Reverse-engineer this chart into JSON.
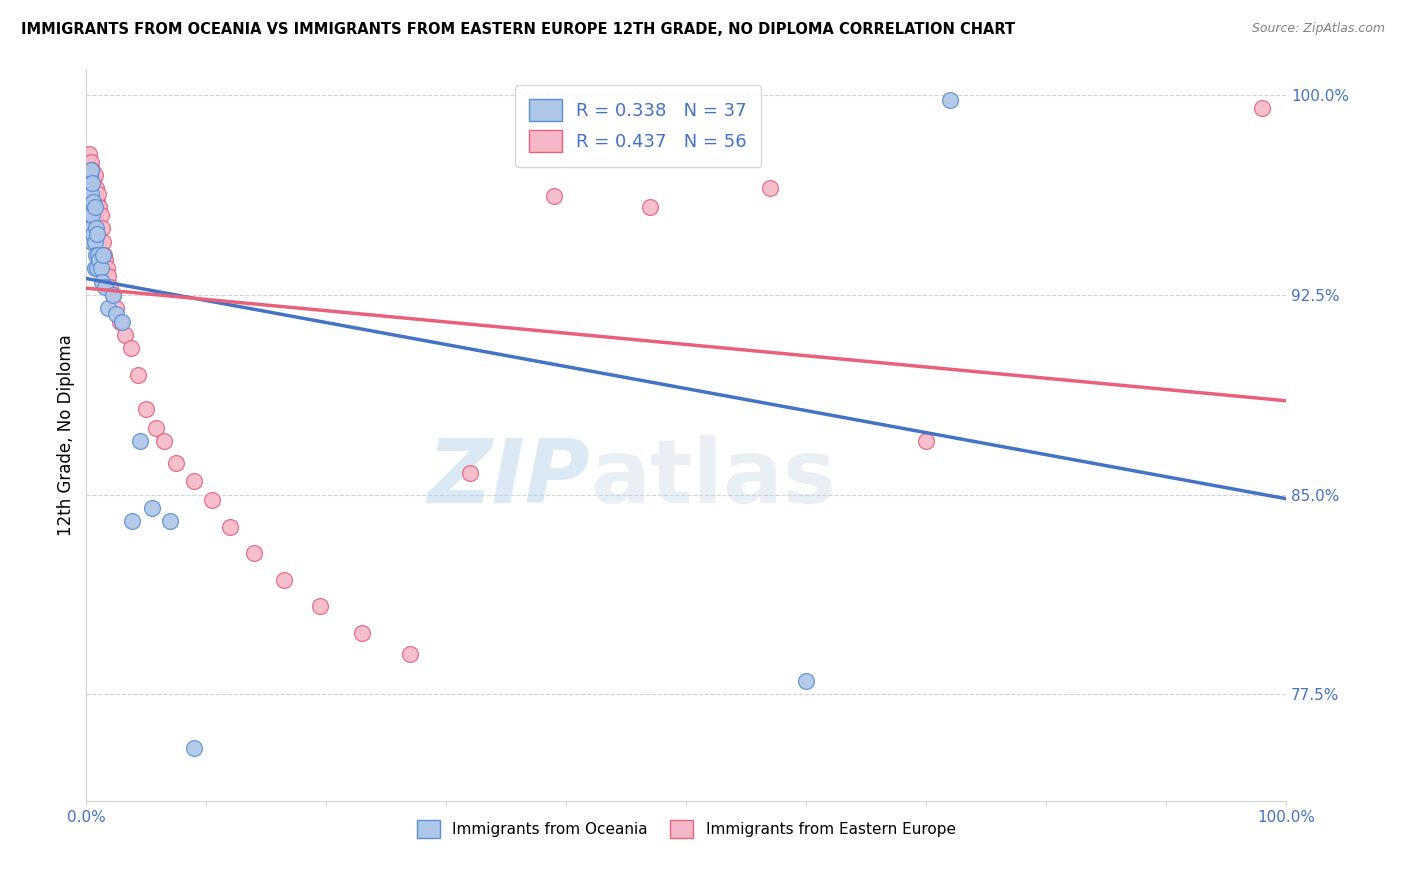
{
  "title": "IMMIGRANTS FROM OCEANIA VS IMMIGRANTS FROM EASTERN EUROPE 12TH GRADE, NO DIPLOMA CORRELATION CHART",
  "source": "Source: ZipAtlas.com",
  "ylabel": "12th Grade, No Diploma",
  "xlim": [
    0,
    1.0
  ],
  "ylim": [
    0.735,
    1.01
  ],
  "yticks": [
    0.775,
    0.85,
    0.925,
    1.0
  ],
  "ytick_labels": [
    "77.5%",
    "85.0%",
    "92.5%",
    "100.0%"
  ],
  "xtick_labels": [
    "0.0%",
    "100.0%"
  ],
  "blue_R": 0.338,
  "blue_N": 37,
  "pink_R": 0.437,
  "pink_N": 56,
  "blue_color": "#aec6e8",
  "pink_color": "#f5b8c8",
  "blue_edge_color": "#5b8fd4",
  "pink_edge_color": "#e8607a",
  "blue_line_color": "#4472c4",
  "pink_line_color": "#e8607a",
  "legend_label_blue": "Immigrants from Oceania",
  "legend_label_pink": "Immigrants from Eastern Europe",
  "watermark_zip": "ZIP",
  "watermark_atlas": "atlas",
  "blue_scatter_x": [
    0.001,
    0.002,
    0.002,
    0.003,
    0.003,
    0.004,
    0.004,
    0.004,
    0.005,
    0.005,
    0.005,
    0.006,
    0.006,
    0.007,
    0.007,
    0.007,
    0.008,
    0.008,
    0.009,
    0.009,
    0.01,
    0.011,
    0.012,
    0.013,
    0.014,
    0.016,
    0.018,
    0.022,
    0.025,
    0.03,
    0.038,
    0.045,
    0.055,
    0.07,
    0.09,
    0.6,
    0.72
  ],
  "blue_scatter_y": [
    0.96,
    0.965,
    0.958,
    0.97,
    0.955,
    0.972,
    0.963,
    0.95,
    0.967,
    0.955,
    0.945,
    0.96,
    0.948,
    0.958,
    0.945,
    0.935,
    0.95,
    0.94,
    0.948,
    0.935,
    0.94,
    0.938,
    0.935,
    0.93,
    0.94,
    0.928,
    0.92,
    0.925,
    0.918,
    0.915,
    0.84,
    0.87,
    0.845,
    0.84,
    0.755,
    0.78,
    0.998
  ],
  "pink_scatter_x": [
    0.001,
    0.002,
    0.002,
    0.003,
    0.003,
    0.004,
    0.004,
    0.005,
    0.005,
    0.005,
    0.006,
    0.006,
    0.007,
    0.007,
    0.008,
    0.008,
    0.009,
    0.009,
    0.01,
    0.01,
    0.011,
    0.011,
    0.012,
    0.012,
    0.013,
    0.013,
    0.014,
    0.015,
    0.016,
    0.017,
    0.018,
    0.02,
    0.022,
    0.025,
    0.028,
    0.032,
    0.037,
    0.043,
    0.05,
    0.058,
    0.065,
    0.075,
    0.09,
    0.105,
    0.12,
    0.14,
    0.165,
    0.195,
    0.23,
    0.27,
    0.32,
    0.39,
    0.47,
    0.57,
    0.7,
    0.98
  ],
  "pink_scatter_y": [
    0.975,
    0.978,
    0.968,
    0.972,
    0.962,
    0.975,
    0.96,
    0.972,
    0.962,
    0.953,
    0.968,
    0.958,
    0.97,
    0.955,
    0.965,
    0.95,
    0.96,
    0.948,
    0.963,
    0.945,
    0.958,
    0.942,
    0.955,
    0.94,
    0.95,
    0.938,
    0.945,
    0.94,
    0.938,
    0.935,
    0.932,
    0.928,
    0.925,
    0.92,
    0.915,
    0.91,
    0.905,
    0.895,
    0.882,
    0.875,
    0.87,
    0.862,
    0.855,
    0.848,
    0.838,
    0.828,
    0.818,
    0.808,
    0.798,
    0.79,
    0.858,
    0.962,
    0.958,
    0.965,
    0.87,
    0.995
  ]
}
